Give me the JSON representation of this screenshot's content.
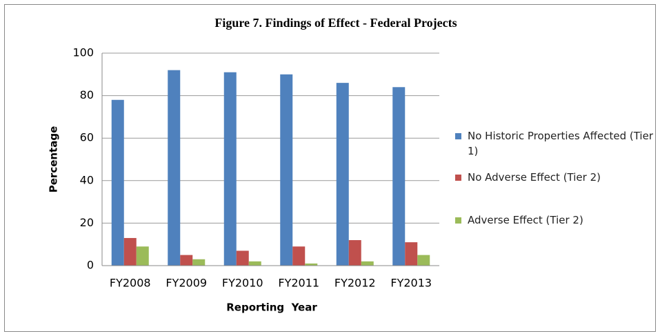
{
  "chart_data": {
    "type": "bar",
    "title": "Figure 7. Findings of Effect - Federal Projects",
    "x_label": "Reporting  Year",
    "y_label": "Percentage",
    "categories": [
      "FY2008",
      "FY2009",
      "FY2010",
      "FY2011",
      "FY2012",
      "FY2013"
    ],
    "series": [
      {
        "name": "No Historic Properties Affected (Tier 1)",
        "color": "#4f81bd",
        "values": [
          78,
          92,
          91,
          90,
          86,
          84
        ]
      },
      {
        "name": "No Adverse Effect (Tier 2)",
        "color": "#c0504d",
        "values": [
          13,
          5,
          7,
          9,
          12,
          11
        ]
      },
      {
        "name": "Adverse Effect (Tier 2)",
        "color": "#9bbb59",
        "values": [
          9,
          3,
          2,
          1,
          2,
          5
        ]
      }
    ],
    "ylim": [
      0,
      100
    ],
    "yticks": [
      0,
      20,
      40,
      60,
      80,
      100
    ],
    "grid": true,
    "legend": "right"
  }
}
